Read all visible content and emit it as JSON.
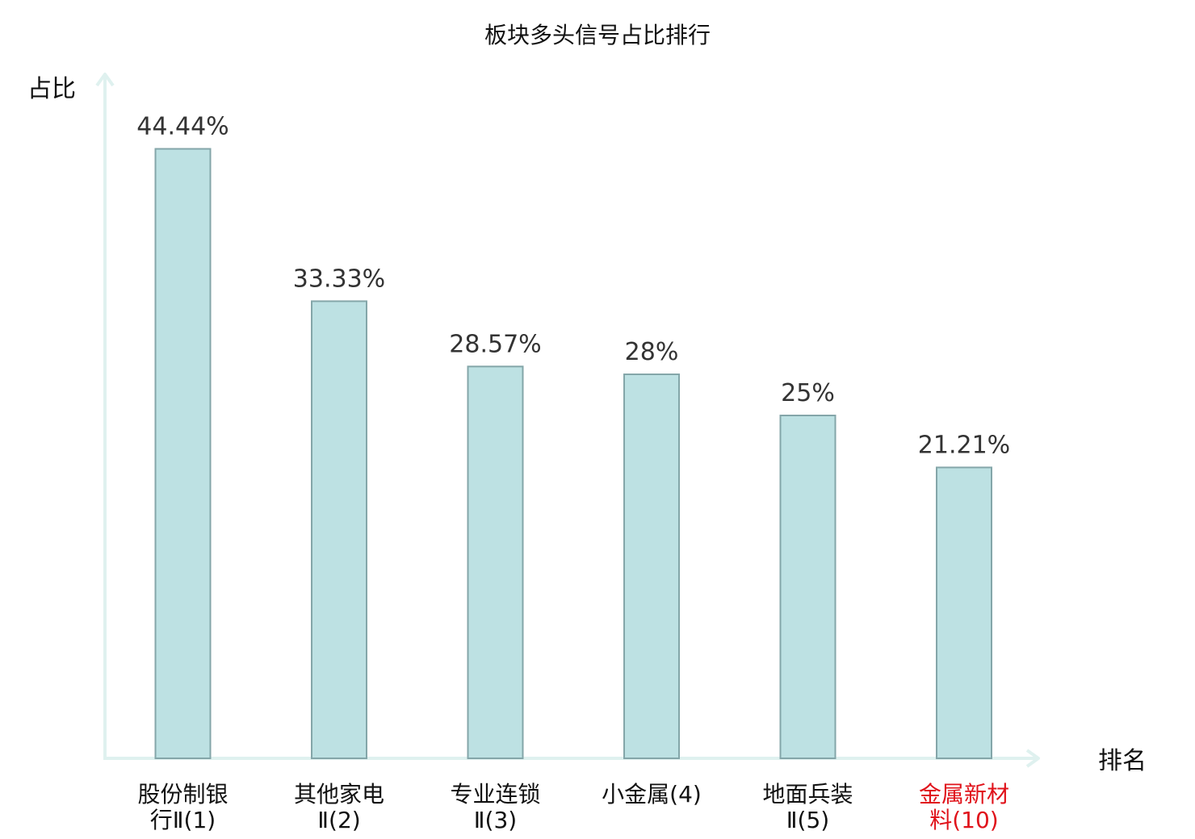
{
  "chart_data": {
    "type": "bar",
    "title": "板块多头信号占比排行",
    "ylabel": "占比",
    "xlabel": "排名",
    "ylim": [
      0,
      50
    ],
    "grid": false,
    "categories": [
      {
        "line1": "股份制银",
        "line2": "行Ⅱ(1)",
        "highlight": false
      },
      {
        "line1": "其他家电",
        "line2": "Ⅱ(2)",
        "highlight": false
      },
      {
        "line1": "专业连锁",
        "line2": "Ⅱ(3)",
        "highlight": false
      },
      {
        "line1": "小金属(4)",
        "line2": "",
        "highlight": false
      },
      {
        "line1": "地面兵装",
        "line2": "Ⅱ(5)",
        "highlight": false
      },
      {
        "line1": "金属新材",
        "line2": "料(10)",
        "highlight": true
      }
    ],
    "values": [
      44.44,
      33.33,
      28.57,
      28,
      25,
      21.21
    ],
    "value_labels": [
      "44.44%",
      "33.33%",
      "28.57%",
      "28%",
      "25%",
      "21.21%"
    ],
    "colors": {
      "bar_fill": "#bde1e3",
      "bar_stroke": "#84a6a9",
      "axis": "#dff1ef",
      "highlight": "#e0131b"
    }
  }
}
